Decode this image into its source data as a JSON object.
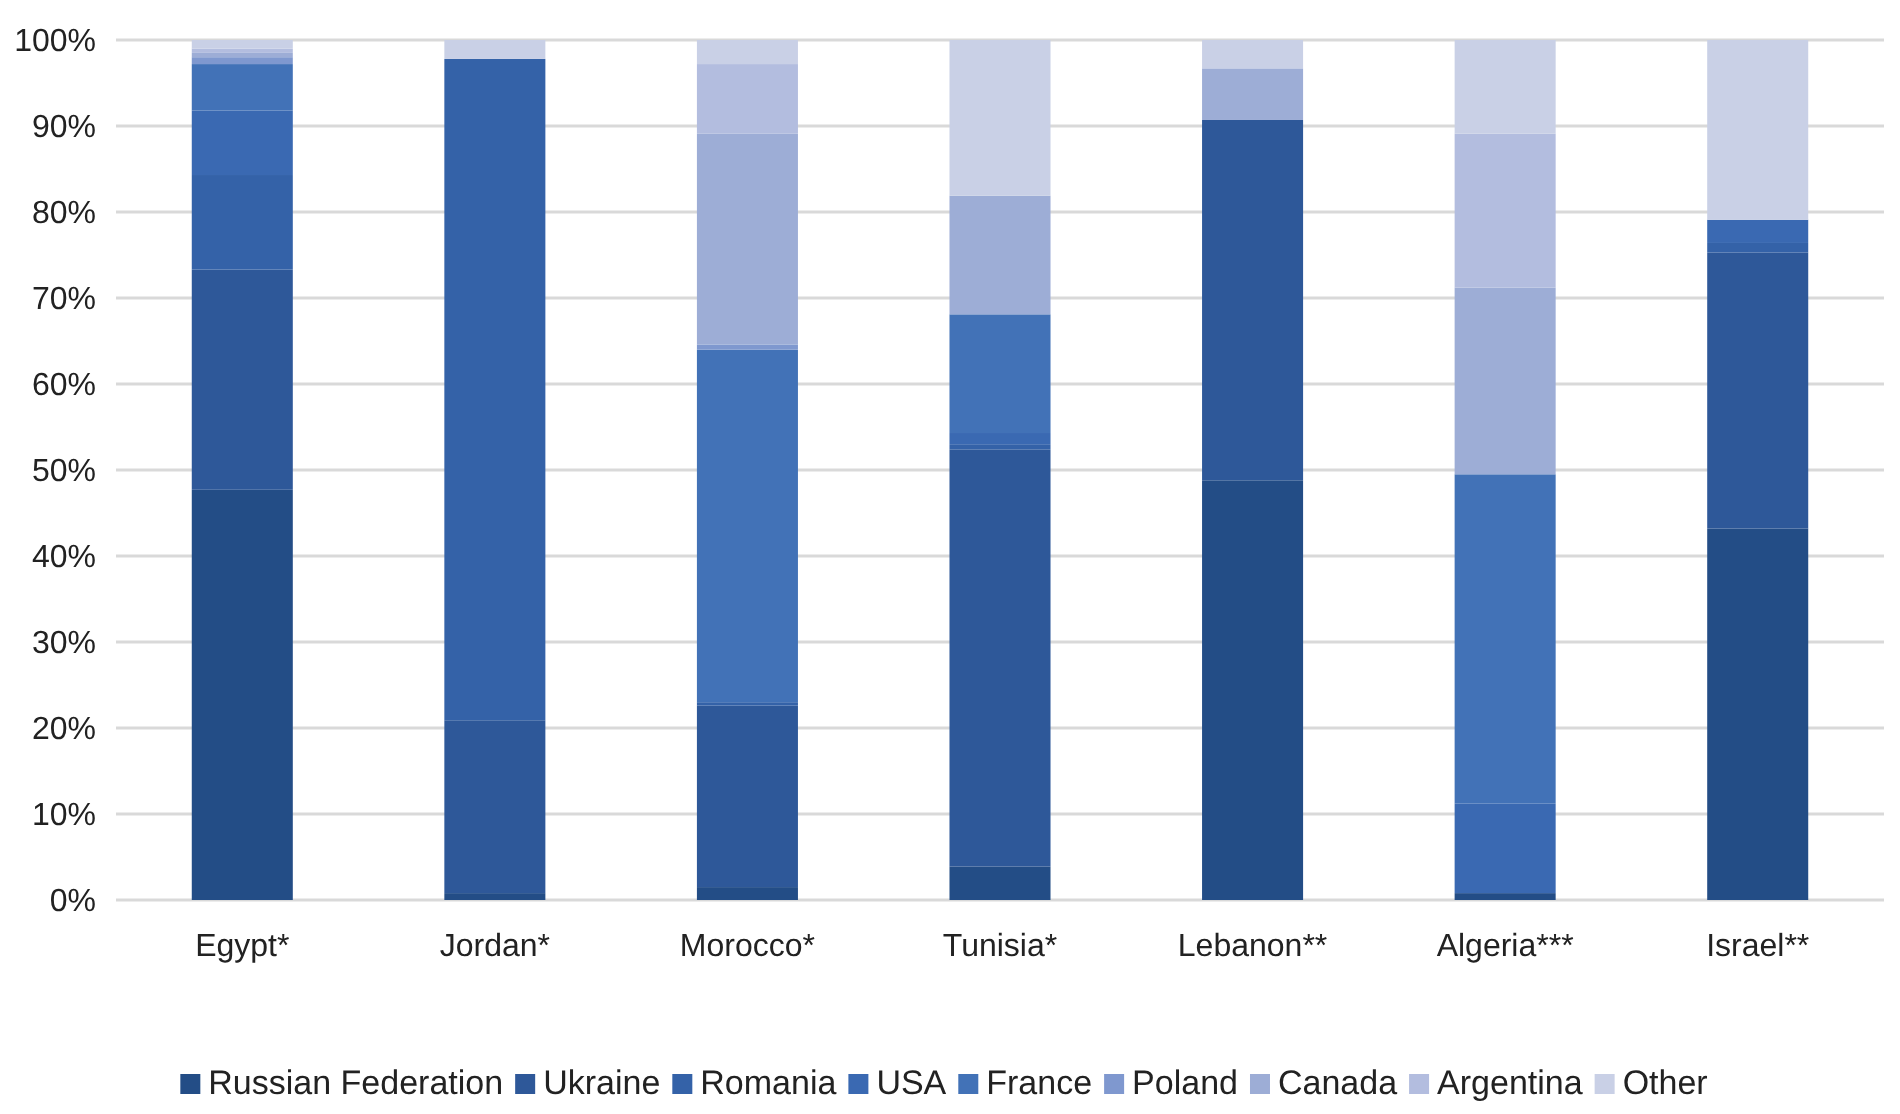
{
  "chart_data": {
    "type": "bar",
    "stacked": true,
    "categories": [
      "Egypt*",
      "Jordan*",
      "Morocco*",
      "Tunisia*",
      "Lebanon**",
      "Algeria***",
      "Israel**"
    ],
    "series": [
      {
        "name": "Russian Federation",
        "color": "#234d86",
        "values": [
          47.7,
          0.8,
          1.5,
          3.9,
          48.8,
          0.8,
          43.2
        ]
      },
      {
        "name": "Ukraine",
        "color": "#2e5899",
        "values": [
          25.6,
          20.1,
          21.1,
          48.5,
          41.9,
          0,
          32.1
        ]
      },
      {
        "name": "Romania",
        "color": "#3462a8",
        "values": [
          11,
          76.9,
          0.4,
          0.6,
          0,
          0,
          1.1
        ]
      },
      {
        "name": "USA",
        "color": "#3a69b2",
        "values": [
          7.5,
          0,
          0,
          1.3,
          0,
          10.4,
          2.7
        ]
      },
      {
        "name": "France",
        "color": "#4272b7",
        "values": [
          5.4,
          0,
          41,
          13.8,
          0,
          38.3,
          0
        ]
      },
      {
        "name": "Poland",
        "color": "#7f98cf",
        "values": [
          0.8,
          0,
          0.6,
          0,
          0,
          0,
          0
        ]
      },
      {
        "name": "Canada",
        "color": "#9dadd6",
        "values": [
          0.5,
          0,
          24.5,
          13.8,
          6,
          21.7,
          0
        ]
      },
      {
        "name": "Argentina",
        "color": "#b3bddf",
        "values": [
          0.5,
          0,
          8.1,
          0,
          0,
          17.9,
          0
        ]
      },
      {
        "name": "Other",
        "color": "#c9d0e6",
        "values": [
          1,
          2.2,
          2.8,
          18.1,
          3.3,
          10.9,
          20.9
        ]
      }
    ],
    "ylim": [
      0,
      100
    ],
    "yticks": [
      {
        "value": 0,
        "label": "0%"
      },
      {
        "value": 10,
        "label": "10%"
      },
      {
        "value": 20,
        "label": "20%"
      },
      {
        "value": 30,
        "label": "30%"
      },
      {
        "value": 40,
        "label": "40%"
      },
      {
        "value": 50,
        "label": "50%"
      },
      {
        "value": 60,
        "label": "60%"
      },
      {
        "value": 70,
        "label": "70%"
      },
      {
        "value": 80,
        "label": "80%"
      },
      {
        "value": 90,
        "label": "90%"
      },
      {
        "value": 100,
        "label": "100%"
      }
    ],
    "grid": "y",
    "legend": "bottom"
  }
}
